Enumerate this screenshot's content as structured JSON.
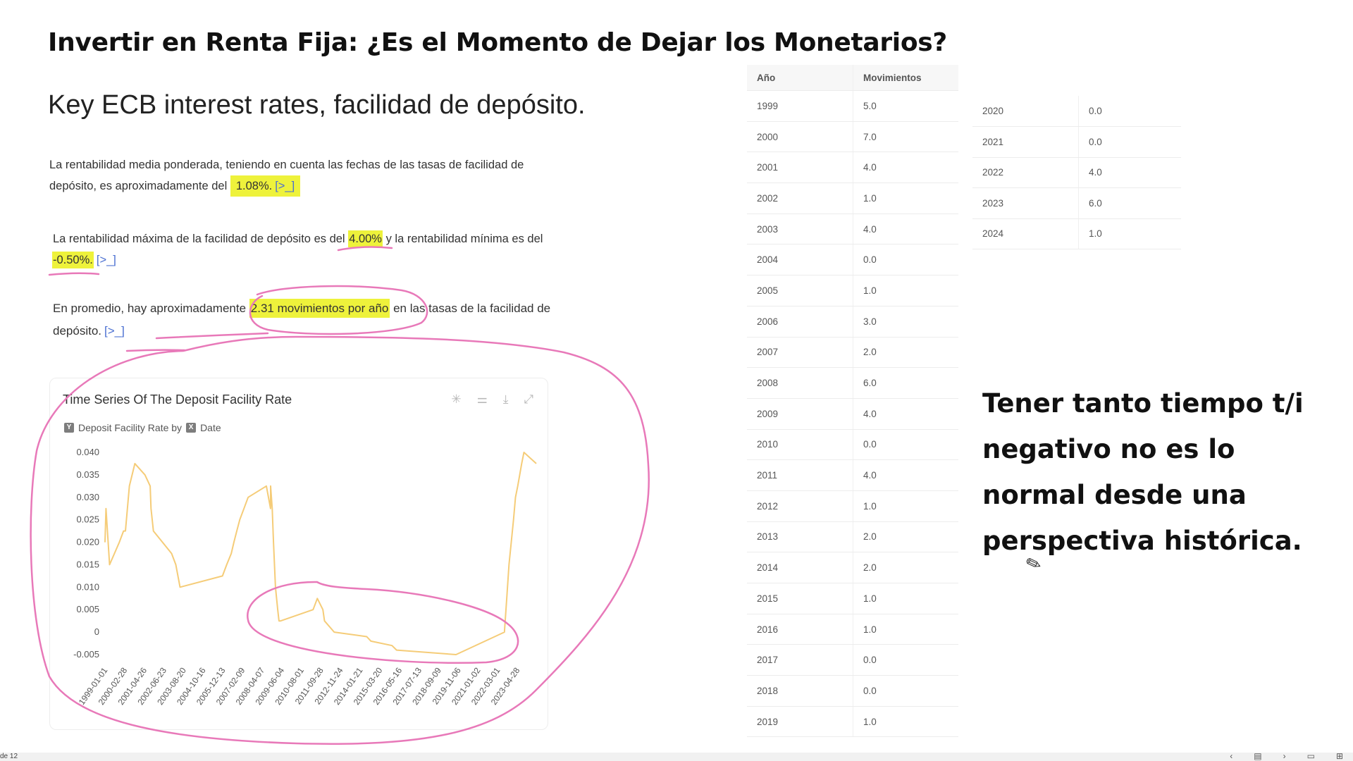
{
  "page": {
    "title": "Invertir en Renta Fija: ¿Es el Momento de Dejar los Monetarios?",
    "subtitle": "Key ECB interest rates, facilidad de depósito."
  },
  "paragraphs": {
    "p1": {
      "line1": "La rentabilidad media ponderada, teniendo en cuenta las fechas de las tasas de facilidad de",
      "line2_pre": "depósito, es aproximadamente del ",
      "highlight": "1.08%.",
      "ref": "[>_]"
    },
    "p2": {
      "pre": "La rentabilidad máxima de la facilidad de depósito es del ",
      "highlight1": "4.00%",
      "mid": " y la rentabilidad mínima es del",
      "highlight2": "-0.50%.",
      "ref": "[>_]"
    },
    "p3": {
      "pre": "En promedio, hay aproximadamente ",
      "highlight": "2.31 movimientos por año",
      "post": " en las tasas de la facilidad de",
      "line2": "depósito.",
      "ref": "[>_]"
    }
  },
  "chart_card": {
    "title": "Time Series Of The Deposit Facility Rate",
    "legend_y_tag": "Y",
    "legend_y": "Deposit Facility Rate by",
    "legend_x_tag": "X",
    "legend_x": "Date",
    "icons": [
      "sparkle-icon",
      "sliders-icon",
      "download-icon",
      "expand-icon"
    ]
  },
  "chart_data": {
    "type": "line",
    "title": "Time Series Of The Deposit Facility Rate",
    "ylabel": "Deposit Facility Rate",
    "xlabel": "Date",
    "ylim": [
      -0.005,
      0.04
    ],
    "yticks": [
      "0.040",
      "0.035",
      "0.030",
      "0.025",
      "0.020",
      "0.015",
      "0.010",
      "0.005",
      "0",
      "-0.005"
    ],
    "xticks": [
      "1999-01-01",
      "2000-02-28",
      "2001-04-26",
      "2002-06-23",
      "2003-08-20",
      "2004-10-16",
      "2005-12-13",
      "2007-02-09",
      "2008-04-07",
      "2009-06-04",
      "2010-08-01",
      "2011-09-28",
      "2012-11-24",
      "2014-01-21",
      "2015-03-20",
      "2016-05-16",
      "2017-07-13",
      "2018-09-09",
      "2019-11-06",
      "2021-01-02",
      "2022-03-01",
      "2023-04-28"
    ],
    "series": [
      {
        "color": "#f5cc78",
        "points": [
          [
            "1999-01-01",
            0.02
          ],
          [
            "1999-01-22",
            0.0275
          ],
          [
            "1999-04-09",
            0.015
          ],
          [
            "1999-11-05",
            0.02
          ],
          [
            "2000-02-04",
            0.0225
          ],
          [
            "2000-03-17",
            0.0225
          ],
          [
            "2000-04-28",
            0.0275
          ],
          [
            "2000-06-09",
            0.0325
          ],
          [
            "2000-10-06",
            0.0375
          ],
          [
            "2001-05-11",
            0.035
          ],
          [
            "2001-08-31",
            0.0325
          ],
          [
            "2001-09-18",
            0.0275
          ],
          [
            "2001-11-09",
            0.0225
          ],
          [
            "2002-12-06",
            0.0175
          ],
          [
            "2003-03-07",
            0.015
          ],
          [
            "2003-06-06",
            0.01
          ],
          [
            "2005-12-06",
            0.0125
          ],
          [
            "2006-03-08",
            0.015
          ],
          [
            "2006-06-15",
            0.0175
          ],
          [
            "2006-08-09",
            0.02
          ],
          [
            "2006-10-11",
            0.0225
          ],
          [
            "2006-12-13",
            0.025
          ],
          [
            "2007-03-14",
            0.0275
          ],
          [
            "2007-06-13",
            0.03
          ],
          [
            "2008-07-09",
            0.0325
          ],
          [
            "2008-10-08",
            0.0275
          ],
          [
            "2008-10-09",
            0.0325
          ],
          [
            "2008-11-12",
            0.0275
          ],
          [
            "2008-12-10",
            0.02
          ],
          [
            "2009-01-21",
            0.01
          ],
          [
            "2009-03-11",
            0.005
          ],
          [
            "2009-04-08",
            0.0025
          ],
          [
            "2009-05-13",
            0.0025
          ],
          [
            "2011-04-13",
            0.005
          ],
          [
            "2011-07-13",
            0.0075
          ],
          [
            "2011-11-09",
            0.005
          ],
          [
            "2011-12-14",
            0.0025
          ],
          [
            "2012-07-11",
            0.0
          ],
          [
            "2014-06-11",
            -0.001
          ],
          [
            "2014-09-10",
            -0.002
          ],
          [
            "2015-12-09",
            -0.003
          ],
          [
            "2016-03-16",
            -0.004
          ],
          [
            "2019-09-18",
            -0.005
          ],
          [
            "2022-07-27",
            0.0
          ],
          [
            "2022-09-14",
            0.0075
          ],
          [
            "2022-11-02",
            0.015
          ],
          [
            "2022-12-21",
            0.02
          ],
          [
            "2023-02-08",
            0.025
          ],
          [
            "2023-03-22",
            0.03
          ],
          [
            "2023-05-10",
            0.0325
          ],
          [
            "2023-06-21",
            0.035
          ],
          [
            "2023-08-02",
            0.0375
          ],
          [
            "2023-09-20",
            0.04
          ],
          [
            "2024-06-12",
            0.0375
          ]
        ]
      }
    ]
  },
  "table_left": {
    "headers": [
      "Año",
      "Movimientos"
    ],
    "rows": [
      [
        "1999",
        "5.0"
      ],
      [
        "2000",
        "7.0"
      ],
      [
        "2001",
        "4.0"
      ],
      [
        "2002",
        "1.0"
      ],
      [
        "2003",
        "4.0"
      ],
      [
        "2004",
        "0.0"
      ],
      [
        "2005",
        "1.0"
      ],
      [
        "2006",
        "3.0"
      ],
      [
        "2007",
        "2.0"
      ],
      [
        "2008",
        "6.0"
      ],
      [
        "2009",
        "4.0"
      ],
      [
        "2010",
        "0.0"
      ],
      [
        "2011",
        "4.0"
      ],
      [
        "2012",
        "1.0"
      ],
      [
        "2013",
        "2.0"
      ],
      [
        "2014",
        "2.0"
      ],
      [
        "2015",
        "1.0"
      ],
      [
        "2016",
        "1.0"
      ],
      [
        "2017",
        "0.0"
      ],
      [
        "2018",
        "0.0"
      ],
      [
        "2019",
        "1.0"
      ]
    ]
  },
  "table_right": {
    "rows": [
      [
        "2020",
        "0.0"
      ],
      [
        "2021",
        "0.0"
      ],
      [
        "2022",
        "4.0"
      ],
      [
        "2023",
        "6.0"
      ],
      [
        "2024",
        "1.0"
      ]
    ]
  },
  "remark": "Tener tanto tiempo t/i negativo no es lo normal desde una perspectiva histórica.",
  "statusbar": {
    "page_text": "de 12"
  },
  "colors": {
    "highlight": "#eef23b",
    "annotation_ink": "#e879b9",
    "line": "#f5cc78"
  }
}
